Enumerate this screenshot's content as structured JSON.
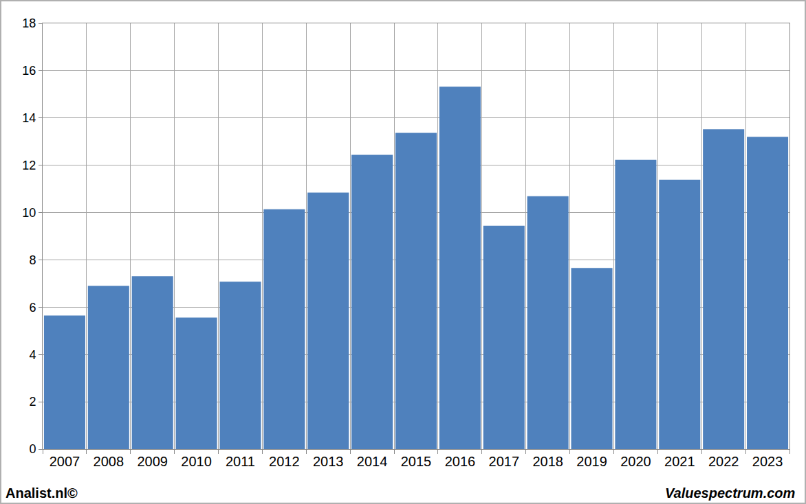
{
  "chart_data": {
    "type": "bar",
    "categories": [
      "2007",
      "2008",
      "2009",
      "2010",
      "2011",
      "2012",
      "2013",
      "2014",
      "2015",
      "2016",
      "2017",
      "2018",
      "2019",
      "2020",
      "2021",
      "2022",
      "2023"
    ],
    "values": [
      5.65,
      6.9,
      7.31,
      5.56,
      7.08,
      10.14,
      10.84,
      12.44,
      13.37,
      15.32,
      9.44,
      10.69,
      7.66,
      12.23,
      11.39,
      13.52,
      13.2
    ],
    "color": "#4f81bd",
    "ylim": [
      0,
      18
    ],
    "yticks": [
      0,
      2,
      4,
      6,
      8,
      10,
      12,
      14,
      16,
      18
    ],
    "grid": true,
    "annotations": [
      "Analist.nl©",
      "Valuespectrum.com"
    ]
  }
}
